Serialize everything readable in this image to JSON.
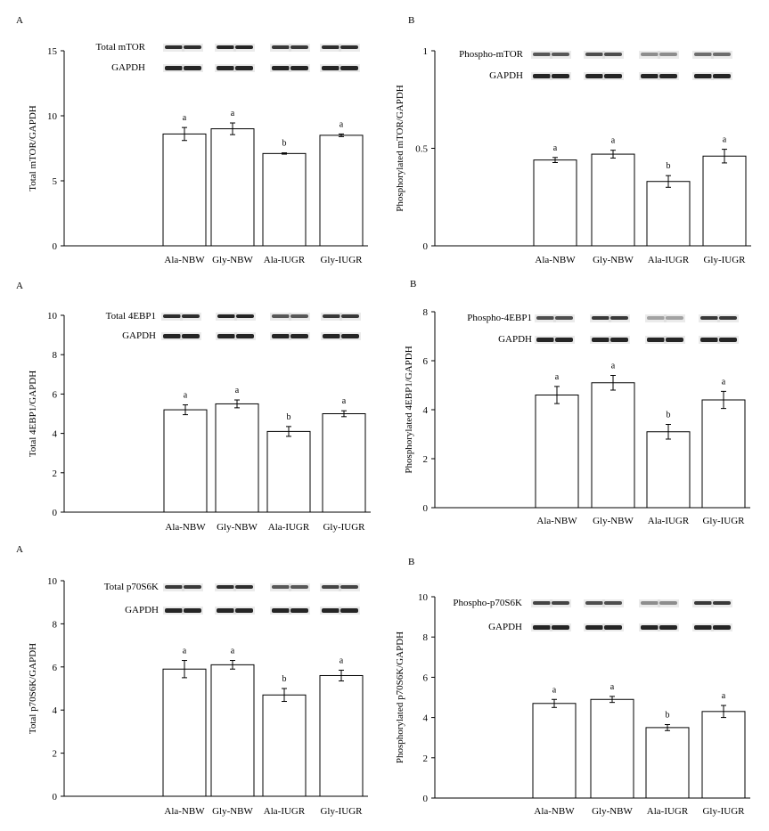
{
  "colors": {
    "bar_fill": "#ffffff",
    "stroke": "#000000",
    "blot_band": "#1a1a1a"
  },
  "categories": [
    "Ala-NBW",
    "Gly-NBW",
    "Ala-IUGR",
    "Gly-IUGR"
  ],
  "chart_data": [
    {
      "id": "mtor-total",
      "panel_letter": "A",
      "type": "bar",
      "ylabel": "Total mTOR/GAPDH",
      "ylim": [
        0,
        15
      ],
      "yticks": [
        0,
        5,
        10,
        15
      ],
      "tick_labels": [
        "0",
        "5",
        "10",
        "15"
      ],
      "categories": [
        "Ala-NBW",
        "Gly-NBW",
        "Ala-IUGR",
        "Gly-IUGR"
      ],
      "values": [
        8.6,
        9.0,
        7.1,
        8.5
      ],
      "errors": [
        0.5,
        0.45,
        0.05,
        0.1
      ],
      "sig_letters": [
        "a",
        "a",
        "b",
        "a"
      ],
      "blot_labels": [
        "Total mTOR",
        "GAPDH"
      ],
      "blot_intensity": [
        0.9,
        0.95,
        0.85,
        0.9
      ]
    },
    {
      "id": "mtor-phospho",
      "panel_letter": "B",
      "type": "bar",
      "ylabel": "Phosphorylated mTOR/GAPDH",
      "ylim": [
        0,
        1
      ],
      "yticks": [
        0,
        0.5,
        1
      ],
      "tick_labels": [
        "0",
        "0.5",
        "1"
      ],
      "categories": [
        "Ala-NBW",
        "Gly-NBW",
        "Ala-IUGR",
        "Gly-IUGR"
      ],
      "values": [
        0.44,
        0.47,
        0.33,
        0.46
      ],
      "errors": [
        0.013,
        0.02,
        0.03,
        0.035
      ],
      "sig_letters": [
        "a",
        "a",
        "b",
        "a"
      ],
      "blot_labels": [
        "Phospho-mTOR",
        "GAPDH"
      ],
      "blot_intensity": [
        0.7,
        0.75,
        0.45,
        0.6
      ]
    },
    {
      "id": "4ebp1-total",
      "panel_letter": "A",
      "type": "bar",
      "ylabel": "Total 4EBP1/GAPDH",
      "ylim": [
        0,
        10
      ],
      "yticks": [
        0,
        2,
        4,
        6,
        8,
        10
      ],
      "tick_labels": [
        "0",
        "2",
        "4",
        "6",
        "8",
        "10"
      ],
      "categories": [
        "Ala-NBW",
        "Gly-NBW",
        "Ala-IUGR",
        "Gly-IUGR"
      ],
      "values": [
        5.2,
        5.5,
        4.1,
        5.0
      ],
      "errors": [
        0.25,
        0.2,
        0.25,
        0.15
      ],
      "sig_letters": [
        "a",
        "a",
        "b",
        "a"
      ],
      "blot_labels": [
        "Total 4EBP1",
        "GAPDH"
      ],
      "blot_intensity": [
        0.9,
        0.95,
        0.7,
        0.85
      ]
    },
    {
      "id": "4ebp1-phospho",
      "panel_letter": "B",
      "type": "bar",
      "ylabel": "Phosphorylated 4EBP1/GAPDH",
      "ylim": [
        0,
        8
      ],
      "yticks": [
        0,
        2,
        4,
        6,
        8
      ],
      "tick_labels": [
        "0",
        "2",
        "4",
        "6",
        "8"
      ],
      "categories": [
        "Ala-NBW",
        "Gly-NBW",
        "Ala-IUGR",
        "Gly-IUGR"
      ],
      "values": [
        4.6,
        5.1,
        3.1,
        4.4
      ],
      "errors": [
        0.35,
        0.3,
        0.3,
        0.35
      ],
      "sig_letters": [
        "a",
        "a",
        "b",
        "a"
      ],
      "blot_labels": [
        "Phospho-4EBP1",
        "GAPDH"
      ],
      "blot_intensity": [
        0.75,
        0.85,
        0.35,
        0.85
      ]
    },
    {
      "id": "p70s6k-total",
      "panel_letter": "A",
      "type": "bar",
      "ylabel": "Total p70S6K/GAPDH",
      "ylim": [
        0,
        10
      ],
      "yticks": [
        0,
        2,
        4,
        6,
        8,
        10
      ],
      "tick_labels": [
        "0",
        "2",
        "4",
        "6",
        "8",
        "10"
      ],
      "categories": [
        "Ala-NBW",
        "Gly-NBW",
        "Ala-IUGR",
        "Gly-IUGR"
      ],
      "values": [
        5.9,
        6.1,
        4.7,
        5.6
      ],
      "errors": [
        0.4,
        0.2,
        0.3,
        0.25
      ],
      "sig_letters": [
        "a",
        "a",
        "b",
        "a"
      ],
      "blot_labels": [
        "Total p70S6K",
        "GAPDH"
      ],
      "blot_intensity": [
        0.85,
        0.9,
        0.7,
        0.8
      ]
    },
    {
      "id": "p70s6k-phospho",
      "panel_letter": "B",
      "type": "bar",
      "ylabel": "Phosphorylated p70S6K/GAPDH",
      "ylim": [
        0,
        10
      ],
      "yticks": [
        0,
        2,
        4,
        6,
        8,
        10
      ],
      "tick_labels": [
        "0",
        "2",
        "4",
        "6",
        "8",
        "10"
      ],
      "categories": [
        "Ala-NBW",
        "Gly-NBW",
        "Ala-IUGR",
        "Gly-IUGR"
      ],
      "values": [
        4.7,
        4.9,
        3.5,
        4.3
      ],
      "errors": [
        0.2,
        0.15,
        0.15,
        0.3
      ],
      "sig_letters": [
        "a",
        "a",
        "b",
        "a"
      ],
      "blot_labels": [
        "Phospho-p70S6K",
        "GAPDH"
      ],
      "blot_intensity": [
        0.8,
        0.75,
        0.45,
        0.85
      ]
    }
  ]
}
